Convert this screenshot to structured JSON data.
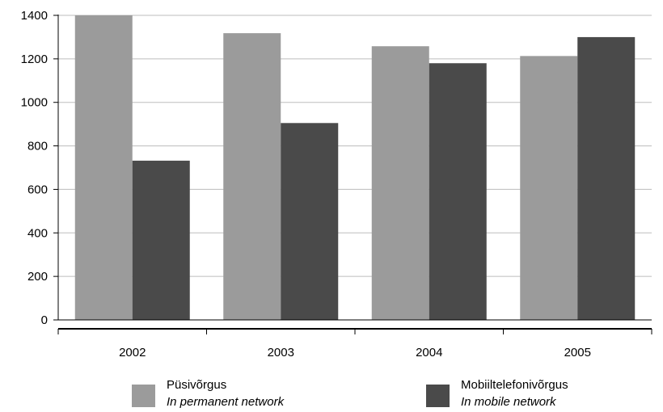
{
  "chart_data": {
    "type": "bar",
    "categories": [
      "2002",
      "2003",
      "2004",
      "2005"
    ],
    "series": [
      {
        "name": "Püsivõrgus",
        "name_en": "In permanent network",
        "color": "#9b9b9b",
        "values": [
          1400,
          1318,
          1258,
          1213
        ]
      },
      {
        "name": "Mobiiltelefonivõrgus",
        "name_en": "In mobile network",
        "color": "#4a4a4a",
        "values": [
          732,
          905,
          1180,
          1300
        ]
      }
    ],
    "ylim": [
      0,
      1400
    ],
    "yticks": [
      "0",
      "200",
      "400",
      "600",
      "800",
      "1000",
      "1200",
      "1400"
    ],
    "grid": true,
    "legend_position": "bottom"
  }
}
